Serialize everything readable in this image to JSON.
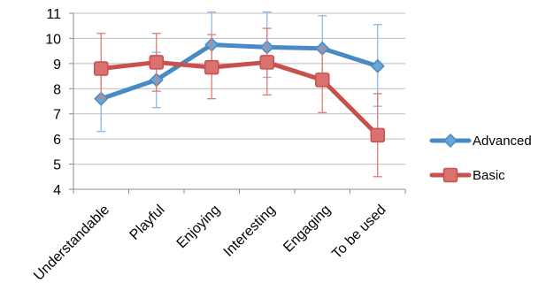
{
  "chart_data": {
    "type": "line",
    "categories": [
      "Understandable",
      "Playful",
      "Enjoying",
      "Interesting",
      "Engaging",
      "To be used"
    ],
    "ylim": [
      4,
      11
    ],
    "yticks": [
      4,
      5,
      6,
      7,
      8,
      9,
      10,
      11
    ],
    "grid": true,
    "legend_position": "right",
    "series": [
      {
        "name": "Advanced",
        "color": "#4a8ac4",
        "marker": "diamond",
        "values": [
          7.6,
          8.35,
          9.75,
          9.65,
          9.6,
          8.9
        ],
        "error_low": [
          6.3,
          7.25,
          8.7,
          8.45,
          8.3,
          7.3
        ],
        "error_high": [
          8.8,
          9.45,
          11.05,
          11.05,
          10.9,
          10.55
        ]
      },
      {
        "name": "Basic",
        "color": "#c9504c",
        "marker": "square",
        "values": [
          8.8,
          9.05,
          8.85,
          9.05,
          8.35,
          6.15
        ],
        "error_low": [
          7.6,
          7.9,
          7.6,
          7.75,
          7.05,
          4.5
        ],
        "error_high": [
          10.2,
          10.2,
          10.15,
          10.4,
          9.6,
          7.8
        ]
      }
    ]
  }
}
